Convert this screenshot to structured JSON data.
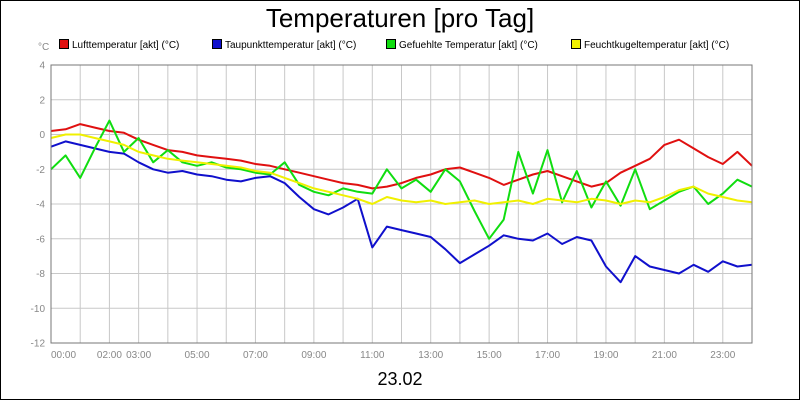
{
  "title": "Temperaturen [pro Tag]",
  "date_label": "23.02",
  "chart_data": {
    "type": "line",
    "title": "Temperaturen [pro Tag]",
    "unit": "°C",
    "xlabel": "23.02",
    "ylabel": "°C",
    "ylim": [
      -12,
      4
    ],
    "xlim": [
      0,
      24
    ],
    "grid": true,
    "legend_position": "top",
    "y_ticks": [
      4,
      2,
      0,
      -2,
      -4,
      -6,
      -8,
      -10,
      -12
    ],
    "x_ticks": [
      {
        "h": 0,
        "label": "00:00"
      },
      {
        "h": 2,
        "label": "02:00"
      },
      {
        "h": 3,
        "label": "03:00"
      },
      {
        "h": 5,
        "label": "05:00"
      },
      {
        "h": 7,
        "label": "07:00"
      },
      {
        "h": 9,
        "label": "09:00"
      },
      {
        "h": 11,
        "label": "11:00"
      },
      {
        "h": 13,
        "label": "13:00"
      },
      {
        "h": 15,
        "label": "15:00"
      },
      {
        "h": 17,
        "label": "17:00"
      },
      {
        "h": 19,
        "label": "19:00"
      },
      {
        "h": 21,
        "label": "21:00"
      },
      {
        "h": 23,
        "label": "23:00"
      }
    ],
    "x": [
      0,
      0.5,
      1,
      1.5,
      2,
      2.5,
      3,
      3.5,
      4,
      4.5,
      5,
      5.5,
      6,
      6.5,
      7,
      7.5,
      8,
      8.5,
      9,
      9.5,
      10,
      10.5,
      11,
      11.5,
      12,
      12.5,
      13,
      13.5,
      14,
      14.5,
      15,
      15.5,
      16,
      16.5,
      17,
      17.5,
      18,
      18.5,
      19,
      19.5,
      20,
      20.5,
      21,
      21.5,
      22,
      22.5,
      23,
      23.5,
      24
    ],
    "series": [
      {
        "name": "Lufttemperatur [akt] (°C)",
        "color": "#e01010",
        "values": [
          0.2,
          0.3,
          0.6,
          0.4,
          0.2,
          0.1,
          -0.3,
          -0.6,
          -0.9,
          -1.0,
          -1.2,
          -1.3,
          -1.4,
          -1.5,
          -1.7,
          -1.8,
          -2.0,
          -2.2,
          -2.4,
          -2.6,
          -2.8,
          -2.9,
          -3.1,
          -3.0,
          -2.8,
          -2.5,
          -2.3,
          -2.0,
          -1.9,
          -2.2,
          -2.5,
          -2.9,
          -2.6,
          -2.3,
          -2.1,
          -2.4,
          -2.7,
          -3.0,
          -2.8,
          -2.2,
          -1.8,
          -1.4,
          -0.6,
          -0.3,
          -0.8,
          -1.3,
          -1.7,
          -1.0,
          -1.8
        ]
      },
      {
        "name": "Taupunkttemperatur [akt] (°C)",
        "color": "#1010cc",
        "values": [
          -0.7,
          -0.4,
          -0.6,
          -0.8,
          -1.0,
          -1.1,
          -1.6,
          -2.0,
          -2.2,
          -2.1,
          -2.3,
          -2.4,
          -2.6,
          -2.7,
          -2.5,
          -2.4,
          -2.8,
          -3.6,
          -4.3,
          -4.6,
          -4.2,
          -3.7,
          -6.5,
          -5.3,
          -5.5,
          -5.7,
          -5.9,
          -6.6,
          -7.4,
          -6.9,
          -6.4,
          -5.8,
          -6.0,
          -6.1,
          -5.7,
          -6.3,
          -5.9,
          -6.1,
          -7.6,
          -8.5,
          -7.0,
          -7.6,
          -7.8,
          -8.0,
          -7.5,
          -7.9,
          -7.3,
          -7.6,
          -7.5
        ]
      },
      {
        "name": "Gefuehlte Temperatur [akt] (°C)",
        "color": "#10dd10",
        "values": [
          -2.0,
          -1.2,
          -2.5,
          -0.8,
          0.8,
          -1.0,
          -0.2,
          -1.6,
          -0.9,
          -1.6,
          -1.8,
          -1.6,
          -1.9,
          -2.0,
          -2.2,
          -2.3,
          -1.6,
          -2.9,
          -3.3,
          -3.5,
          -3.1,
          -3.3,
          -3.4,
          -2.0,
          -3.1,
          -2.6,
          -3.3,
          -2.0,
          -2.7,
          -4.4,
          -6.0,
          -4.9,
          -1.0,
          -3.4,
          -0.9,
          -3.9,
          -2.1,
          -4.2,
          -2.7,
          -4.1,
          -2.0,
          -4.3,
          -3.8,
          -3.3,
          -3.0,
          -4.0,
          -3.4,
          -2.6,
          -3.0
        ]
      },
      {
        "name": "Feuchtkugeltemperatur [akt] (°C)",
        "color": "#f0f000",
        "values": [
          -0.2,
          0.0,
          0.0,
          -0.2,
          -0.4,
          -0.6,
          -1.0,
          -1.2,
          -1.4,
          -1.5,
          -1.6,
          -1.7,
          -1.8,
          -1.9,
          -2.1,
          -2.2,
          -2.5,
          -2.8,
          -3.1,
          -3.3,
          -3.5,
          -3.7,
          -4.0,
          -3.6,
          -3.8,
          -3.9,
          -3.8,
          -4.0,
          -3.9,
          -3.8,
          -4.0,
          -3.9,
          -3.8,
          -4.0,
          -3.7,
          -3.8,
          -3.9,
          -3.7,
          -3.8,
          -4.0,
          -3.8,
          -3.9,
          -3.6,
          -3.2,
          -3.0,
          -3.4,
          -3.6,
          -3.8,
          -3.9
        ]
      }
    ]
  }
}
